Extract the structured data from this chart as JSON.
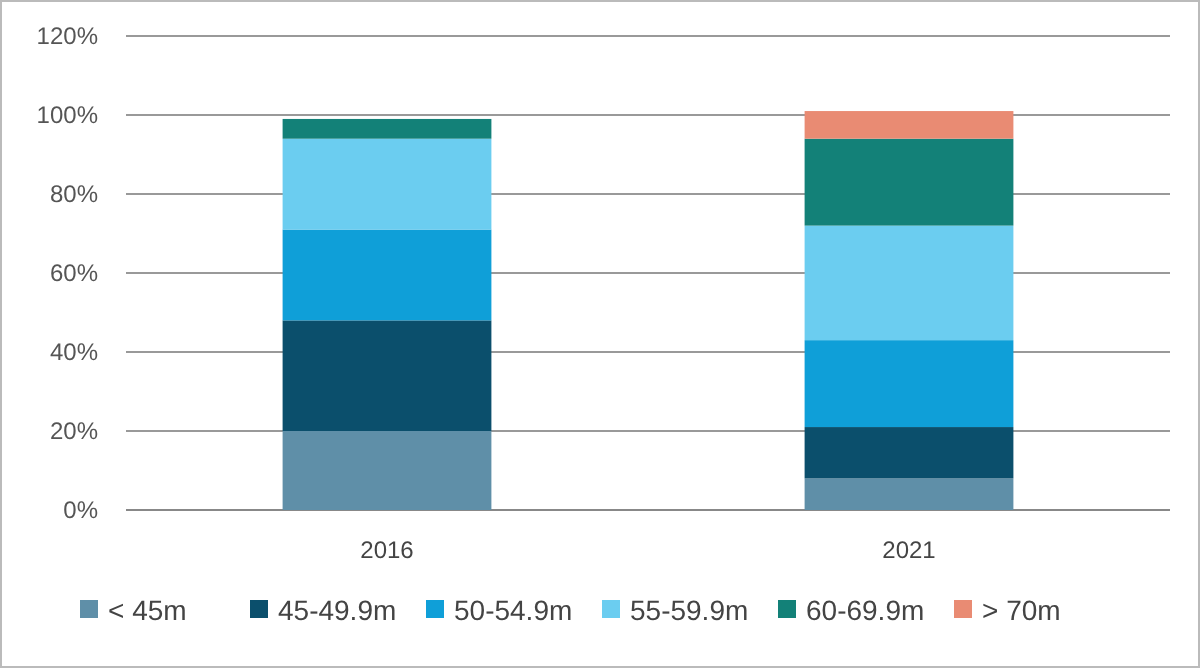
{
  "chart_data": {
    "type": "bar",
    "stacked": true,
    "categories": [
      "2016",
      "2021"
    ],
    "series": [
      {
        "name": "< 45m",
        "color": "#5f8fa8",
        "values": [
          20,
          8
        ]
      },
      {
        "name": "45-49.9m",
        "color": "#0b4f6c",
        "values": [
          28,
          13
        ]
      },
      {
        "name": "50-54.9m",
        "color": "#0f9fd8",
        "values": [
          23,
          22
        ]
      },
      {
        "name": "55-59.9m",
        "color": "#6bcdf0",
        "values": [
          23,
          29
        ]
      },
      {
        "name": "60-69.9m",
        "color": "#138178",
        "values": [
          5,
          22
        ]
      },
      {
        "name": "> 70m",
        "color": "#e98b73",
        "values": [
          0,
          7
        ]
      }
    ],
    "ylim": [
      0,
      120
    ],
    "yticks": [
      {
        "value": 0,
        "label": "0%"
      },
      {
        "value": 20,
        "label": "20%"
      },
      {
        "value": 40,
        "label": "40%"
      },
      {
        "value": 60,
        "label": "60%"
      },
      {
        "value": 80,
        "label": "80%"
      },
      {
        "value": 100,
        "label": "100%"
      },
      {
        "value": 120,
        "label": "120%"
      }
    ],
    "grid": "y",
    "legend": "bottom"
  }
}
